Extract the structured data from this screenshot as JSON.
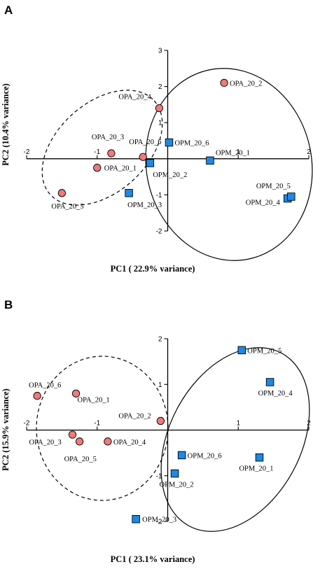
{
  "chart_data": [
    {
      "panel_label": "A",
      "type": "scatter",
      "xlabel": "PC1 ( 22.9% variance)",
      "ylabel": "PC2 (10.4% variance)",
      "xlim": [
        -2,
        2
      ],
      "ylim": [
        -2,
        3
      ],
      "xticks": [
        -2,
        -1,
        1,
        2
      ],
      "yticks": [
        -2,
        -1,
        1,
        2,
        3
      ],
      "grid": false,
      "series": [
        {
          "group": "OPA",
          "marker": "circle",
          "color": "#f07a7a",
          "points": [
            {
              "label": "OPA_20_1",
              "x": -1.0,
              "y": -0.25
            },
            {
              "label": "OPA_20_2",
              "x": 0.8,
              "y": 2.1
            },
            {
              "label": "OPA_20_3",
              "x": -0.8,
              "y": 0.15
            },
            {
              "label": "OPA_20_4",
              "x": -0.12,
              "y": 1.4
            },
            {
              "label": "OPA_20_5",
              "x": -1.5,
              "y": -0.95
            },
            {
              "label": "OPA_20_6",
              "x": -0.35,
              "y": 0.05
            }
          ]
        },
        {
          "group": "OPM",
          "marker": "square",
          "color": "#1e88e5",
          "points": [
            {
              "label": "OPM_20_1",
              "x": 0.6,
              "y": -0.05
            },
            {
              "label": "OPM_20_2",
              "x": -0.25,
              "y": -0.12
            },
            {
              "label": "OPM_20_3",
              "x": -0.55,
              "y": -0.95
            },
            {
              "label": "OPM_20_4",
              "x": 1.7,
              "y": -1.1
            },
            {
              "label": "OPM_20_5",
              "x": 1.75,
              "y": -1.05
            },
            {
              "label": "OPM_20_6",
              "x": 0.02,
              "y": 0.45
            }
          ]
        }
      ]
    },
    {
      "panel_label": "B",
      "type": "scatter",
      "xlabel": "PC1 ( 23.1% variance)",
      "ylabel": "PC2 (15.9% variance)",
      "xlim": [
        -2,
        2
      ],
      "ylim": [
        -2,
        2
      ],
      "xticks": [
        -2,
        -1,
        1,
        2
      ],
      "yticks": [
        -2,
        -1,
        1,
        2
      ],
      "grid": false,
      "series": [
        {
          "group": "OPA",
          "marker": "circle",
          "color": "#f07a7a",
          "points": [
            {
              "label": "OPA_20_1",
              "x": -1.3,
              "y": 0.8
            },
            {
              "label": "OPA_20_2",
              "x": -0.1,
              "y": 0.2
            },
            {
              "label": "OPA_20_3",
              "x": -1.35,
              "y": -0.1
            },
            {
              "label": "OPA_20_4",
              "x": -0.85,
              "y": -0.25
            },
            {
              "label": "OPA_20_5",
              "x": -1.25,
              "y": -0.25
            },
            {
              "label": "OPA_20_6",
              "x": -1.85,
              "y": 0.75
            }
          ]
        },
        {
          "group": "OPM",
          "marker": "square",
          "color": "#1e88e5",
          "points": [
            {
              "label": "OPM_20_1",
              "x": 1.3,
              "y": -0.6
            },
            {
              "label": "OPM_20_2",
              "x": 0.1,
              "y": -0.95
            },
            {
              "label": "OPM_20_3",
              "x": -0.45,
              "y": -1.95
            },
            {
              "label": "OPM_20_4",
              "x": 1.45,
              "y": 1.05
            },
            {
              "label": "OPM_20_5",
              "x": 1.05,
              "y": 1.75
            },
            {
              "label": "OPM_20_6",
              "x": 0.2,
              "y": -0.55
            }
          ]
        }
      ]
    }
  ]
}
